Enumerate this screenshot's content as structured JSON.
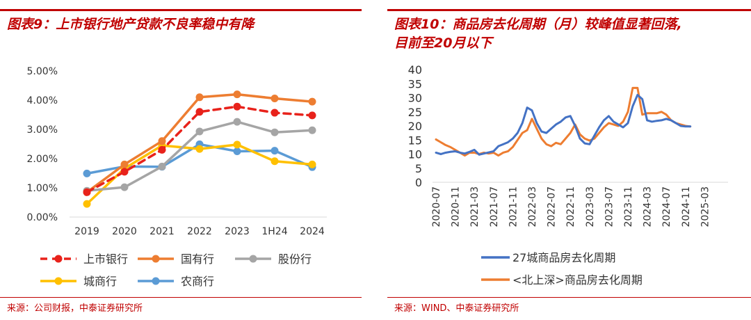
{
  "left_panel": {
    "title": "图表9：上市银行地产贷款不良率稳中有降",
    "source": "来源：公司财报，中泰证券研究所",
    "accent_color": "#c00000"
  },
  "right_panel": {
    "title_line1": "图表10：商品房去化周期（月）较峰值显著回落,",
    "title_line2": "目前至20月以下",
    "source": "来源：WIND、中泰证券研究所",
    "accent_color": "#c00000"
  },
  "chart_data": [
    {
      "type": "line",
      "title": "图表9：上市银行地产贷款不良率稳中有降",
      "categories": [
        "2019",
        "2020",
        "2021",
        "2022",
        "2023",
        "1H24",
        "2024"
      ],
      "y_tick_labels": [
        "5.00%",
        "4.00%",
        "3.00%",
        "2.00%",
        "1.00%",
        "0.00%"
      ],
      "ylim": [
        0,
        5
      ],
      "series": [
        {
          "name": "上市银行",
          "color": "#e8221b",
          "dashed": true,
          "values": [
            0.85,
            1.55,
            2.3,
            3.6,
            3.78,
            3.57,
            3.48
          ]
        },
        {
          "name": "国有行",
          "color": "#ed7d31",
          "dashed": false,
          "values": [
            0.85,
            1.8,
            2.6,
            4.1,
            4.2,
            4.06,
            3.95
          ]
        },
        {
          "name": "股份行",
          "color": "#a5a5a5",
          "dashed": false,
          "values": [
            0.9,
            1.02,
            1.73,
            2.93,
            3.26,
            2.9,
            2.97
          ]
        },
        {
          "name": "城商行",
          "color": "#ffc000",
          "dashed": false,
          "values": [
            0.45,
            1.66,
            2.45,
            2.33,
            2.48,
            1.91,
            1.8
          ]
        },
        {
          "name": "农商行",
          "color": "#5b9bd5",
          "dashed": false,
          "values": [
            1.49,
            1.73,
            1.72,
            2.49,
            2.25,
            2.27,
            1.71
          ]
        }
      ]
    },
    {
      "type": "line",
      "title": "图表10：商品房去化周期（月）较峰值显著回落",
      "x_tick_labels": [
        "2020-07",
        "2020-11",
        "2021-03",
        "2021-07",
        "2021-11",
        "2022-03",
        "2022-07",
        "2022-11",
        "2023-03",
        "2023-07",
        "2023-11",
        "2024-03",
        "2024-07",
        "2024-11",
        "2025-03"
      ],
      "y_tick_labels": [
        "40",
        "35",
        "30",
        "25",
        "20",
        "15",
        "10",
        "5",
        "0"
      ],
      "ylim": [
        0,
        40
      ],
      "x_start": "2020-07",
      "series": [
        {
          "name": "27城商品房去化周期",
          "color": "#4472c4",
          "values": [
            10.5,
            10.0,
            10.5,
            10.8,
            11.0,
            10.5,
            10.2,
            10.8,
            11.5,
            9.8,
            10.2,
            10.6,
            11.0,
            12.8,
            13.5,
            14.2,
            15.5,
            17.5,
            21.0,
            26.5,
            25.5,
            21.0,
            18.0,
            17.5,
            19.0,
            20.5,
            21.5,
            23.0,
            23.5,
            20.0,
            15.5,
            13.8,
            13.5,
            16.5,
            19.5,
            22.0,
            23.5,
            21.5,
            20.5,
            19.5,
            21.0,
            27.0,
            31.0,
            29.5,
            22.0,
            21.5,
            21.8,
            22.0,
            22.5,
            22.0,
            21.0,
            20.0,
            19.8,
            19.8
          ]
        },
        {
          "name": "<北上深>商品房去化周期",
          "color": "#ed7d31",
          "values": [
            15.2,
            14.2,
            13.2,
            12.5,
            11.5,
            10.5,
            9.5,
            10.5,
            10.5,
            10.0,
            10.5,
            10.2,
            10.5,
            9.5,
            10.5,
            11.0,
            12.5,
            15.0,
            17.5,
            18.5,
            22.5,
            19.0,
            15.5,
            13.5,
            12.8,
            14.0,
            13.5,
            15.5,
            17.5,
            20.5,
            17.0,
            15.5,
            14.8,
            15.5,
            17.5,
            19.5,
            21.0,
            20.5,
            20.0,
            21.5,
            25.0,
            33.5,
            33.5,
            24.0,
            24.5,
            24.5,
            24.5,
            25.0,
            24.0,
            22.0,
            21.0,
            20.5,
            20.0,
            19.8
          ]
        }
      ]
    }
  ]
}
